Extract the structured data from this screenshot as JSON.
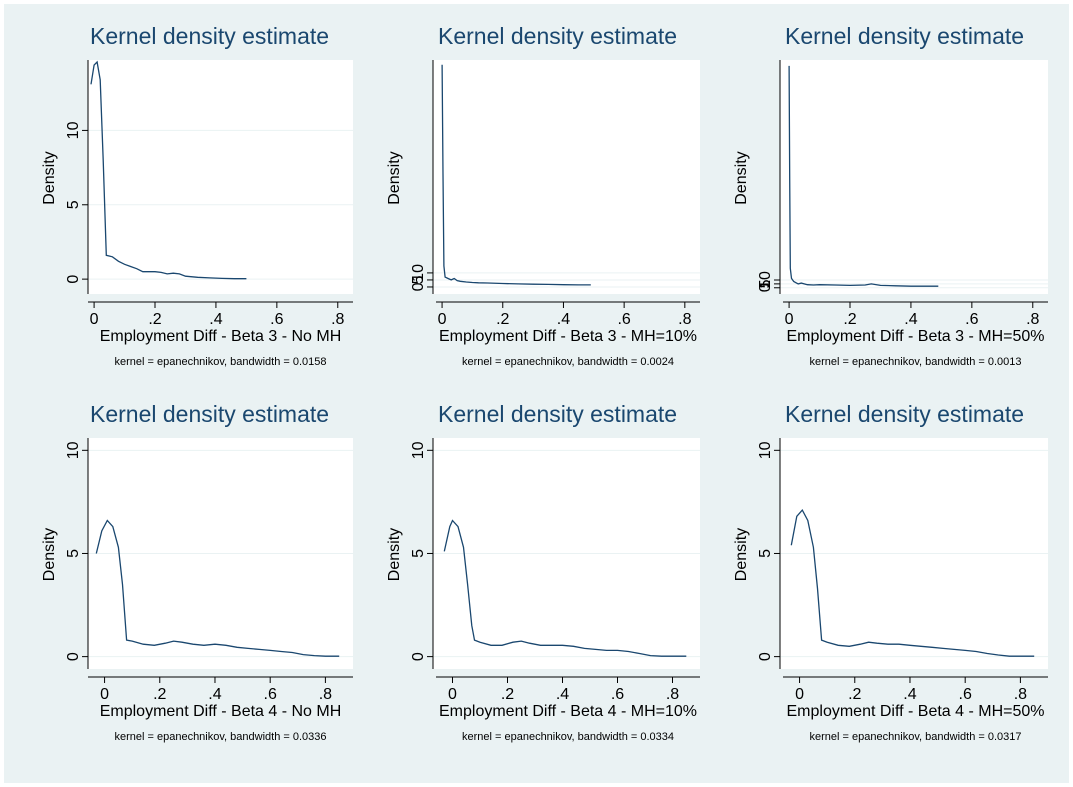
{
  "chart_data": [
    {
      "type": "line",
      "title": "Kernel density estimate",
      "xlabel": "Employment Diff - Beta 3 - No MH",
      "ylabel": "Density",
      "note": "kernel = epanechnikov, bandwidth = 0.0158",
      "xlim": [
        -0.02,
        0.85
      ],
      "ylim": [
        -1,
        14.6
      ],
      "xticks": [
        {
          "value": 0,
          "label": "0"
        },
        {
          "value": 0.2,
          "label": ".2"
        },
        {
          "value": 0.4,
          "label": ".4"
        },
        {
          "value": 0.6,
          "label": ".6"
        },
        {
          "value": 0.8,
          "label": ".8"
        }
      ],
      "yticks": [
        {
          "value": 0,
          "label": "0"
        },
        {
          "value": 5,
          "label": "5"
        },
        {
          "value": 10,
          "label": "10"
        }
      ],
      "series": [
        {
          "x": [
            -0.01,
            0.0,
            0.01,
            0.02,
            0.03,
            0.04,
            0.06,
            0.08,
            0.1,
            0.12,
            0.14,
            0.16,
            0.2,
            0.22,
            0.24,
            0.26,
            0.28,
            0.3,
            0.34,
            0.38,
            0.42,
            0.46,
            0.5
          ],
          "y": [
            13.1,
            14.4,
            14.6,
            13.4,
            8.0,
            1.6,
            1.5,
            1.2,
            1.0,
            0.85,
            0.7,
            0.5,
            0.5,
            0.45,
            0.35,
            0.4,
            0.35,
            0.2,
            0.12,
            0.08,
            0.05,
            0.03,
            0.03
          ]
        }
      ]
    },
    {
      "type": "line",
      "title": "Kernel density estimate",
      "xlabel": "Employment Diff - Beta 3 - MH=10%",
      "ylabel": "Density",
      "note": "kernel = epanechnikov, bandwidth = 0.0024",
      "xlim": [
        -0.02,
        0.85
      ],
      "ylim": [
        -5,
        160
      ],
      "xticks": [
        {
          "value": 0,
          "label": "0"
        },
        {
          "value": 0.2,
          "label": ".2"
        },
        {
          "value": 0.4,
          "label": ".4"
        },
        {
          "value": 0.6,
          "label": ".6"
        },
        {
          "value": 0.8,
          "label": ".8"
        }
      ],
      "yticks": [
        {
          "value": 0,
          "label": "0"
        },
        {
          "value": 5,
          "label": "5"
        },
        {
          "value": 10,
          "label": "10"
        }
      ],
      "series": [
        {
          "x": [
            0.0,
            0.003,
            0.006,
            0.01,
            0.02,
            0.03,
            0.04,
            0.05,
            0.06,
            0.08,
            0.1,
            0.12,
            0.15,
            0.2,
            0.25,
            0.3,
            0.35,
            0.4,
            0.45,
            0.49
          ],
          "y": [
            158,
            80,
            15,
            7,
            6,
            5,
            6,
            4.5,
            4,
            3.5,
            3.2,
            3,
            2.8,
            2.5,
            2.2,
            2,
            1.8,
            1.6,
            1.5,
            1.5
          ]
        }
      ]
    },
    {
      "type": "line",
      "title": "Kernel density estimate",
      "xlabel": "Employment Diff - Beta 3 - MH=50%",
      "ylabel": "Density",
      "note": "kernel = epanechnikov, bandwidth = 0.0013",
      "xlim": [
        -0.02,
        0.85
      ],
      "ylim": [
        -8,
        290
      ],
      "xticks": [
        {
          "value": 0,
          "label": "0"
        },
        {
          "value": 0.2,
          "label": ".2"
        },
        {
          "value": 0.4,
          "label": ".4"
        },
        {
          "value": 0.6,
          "label": ".6"
        },
        {
          "value": 0.8,
          "label": ".8"
        }
      ],
      "yticks": [
        {
          "value": 0,
          "label": "0"
        },
        {
          "value": 5,
          "label": "5"
        },
        {
          "value": 10,
          "label": "10"
        }
      ],
      "series": [
        {
          "x": [
            0.0,
            0.002,
            0.004,
            0.008,
            0.015,
            0.02,
            0.03,
            0.04,
            0.06,
            0.08,
            0.1,
            0.15,
            0.2,
            0.25,
            0.27,
            0.3,
            0.35,
            0.4,
            0.45,
            0.49
          ],
          "y": [
            285,
            140,
            25,
            12,
            8,
            7,
            5,
            6,
            4,
            3.5,
            4,
            3.5,
            3,
            3.5,
            5,
            3,
            2.5,
            2,
            2,
            2
          ]
        }
      ]
    },
    {
      "type": "line",
      "title": "Kernel density estimate",
      "xlabel": "Employment Diff - Beta 4 - No MH",
      "ylabel": "Density",
      "note": "kernel = epanechnikov, bandwidth = 0.0336",
      "xlim": [
        -0.06,
        0.9
      ],
      "ylim": [
        -0.6,
        10.5
      ],
      "xticks": [
        {
          "value": 0,
          "label": "0"
        },
        {
          "value": 0.2,
          "label": ".2"
        },
        {
          "value": 0.4,
          "label": ".4"
        },
        {
          "value": 0.6,
          "label": ".6"
        },
        {
          "value": 0.8,
          "label": ".8"
        }
      ],
      "yticks": [
        {
          "value": 0,
          "label": "0"
        },
        {
          "value": 5,
          "label": "5"
        },
        {
          "value": 10,
          "label": "10"
        }
      ],
      "series": [
        {
          "x": [
            -0.03,
            -0.01,
            0.01,
            0.03,
            0.05,
            0.065,
            0.08,
            0.1,
            0.14,
            0.18,
            0.22,
            0.25,
            0.28,
            0.32,
            0.36,
            0.4,
            0.44,
            0.48,
            0.52,
            0.56,
            0.6,
            0.64,
            0.68,
            0.72,
            0.76,
            0.8,
            0.85
          ],
          "y": [
            5.0,
            6.1,
            6.6,
            6.3,
            5.3,
            3.5,
            0.8,
            0.75,
            0.6,
            0.55,
            0.65,
            0.75,
            0.7,
            0.6,
            0.55,
            0.6,
            0.55,
            0.45,
            0.4,
            0.35,
            0.3,
            0.25,
            0.2,
            0.1,
            0.05,
            0.02,
            0.02
          ]
        }
      ]
    },
    {
      "type": "line",
      "title": "Kernel density estimate",
      "xlabel": "Employment Diff - Beta 4 - MH=10%",
      "ylabel": "Density",
      "note": "kernel = epanechnikov, bandwidth = 0.0334",
      "xlim": [
        -0.06,
        0.9
      ],
      "ylim": [
        -0.6,
        10.5
      ],
      "xticks": [
        {
          "value": 0,
          "label": "0"
        },
        {
          "value": 0.2,
          "label": ".2"
        },
        {
          "value": 0.4,
          "label": ".4"
        },
        {
          "value": 0.6,
          "label": ".6"
        },
        {
          "value": 0.8,
          "label": ".8"
        }
      ],
      "yticks": [
        {
          "value": 0,
          "label": "0"
        },
        {
          "value": 5,
          "label": "5"
        },
        {
          "value": 10,
          "label": "10"
        }
      ],
      "series": [
        {
          "x": [
            -0.03,
            -0.01,
            0.0,
            0.02,
            0.04,
            0.055,
            0.07,
            0.08,
            0.1,
            0.14,
            0.18,
            0.22,
            0.25,
            0.28,
            0.32,
            0.36,
            0.4,
            0.44,
            0.48,
            0.52,
            0.56,
            0.6,
            0.64,
            0.68,
            0.72,
            0.76,
            0.8,
            0.85
          ],
          "y": [
            5.1,
            6.3,
            6.6,
            6.3,
            5.3,
            3.5,
            1.5,
            0.8,
            0.7,
            0.55,
            0.55,
            0.7,
            0.75,
            0.65,
            0.55,
            0.55,
            0.55,
            0.5,
            0.4,
            0.35,
            0.3,
            0.3,
            0.25,
            0.15,
            0.05,
            0.02,
            0.02,
            0.02
          ]
        }
      ]
    },
    {
      "type": "line",
      "title": "Kernel density estimate",
      "xlabel": "Employment Diff - Beta 4 - MH=50%",
      "ylabel": "Density",
      "note": "kernel = epanechnikov, bandwidth = 0.0317",
      "xlim": [
        -0.06,
        0.9
      ],
      "ylim": [
        -0.6,
        10.5
      ],
      "xticks": [
        {
          "value": 0,
          "label": "0"
        },
        {
          "value": 0.2,
          "label": ".2"
        },
        {
          "value": 0.4,
          "label": ".4"
        },
        {
          "value": 0.6,
          "label": ".6"
        },
        {
          "value": 0.8,
          "label": ".8"
        }
      ],
      "yticks": [
        {
          "value": 0,
          "label": "0"
        },
        {
          "value": 5,
          "label": "5"
        },
        {
          "value": 10,
          "label": "10"
        }
      ],
      "series": [
        {
          "x": [
            -0.03,
            -0.01,
            0.01,
            0.03,
            0.05,
            0.065,
            0.08,
            0.1,
            0.14,
            0.18,
            0.22,
            0.25,
            0.28,
            0.32,
            0.36,
            0.4,
            0.44,
            0.48,
            0.52,
            0.56,
            0.6,
            0.64,
            0.68,
            0.72,
            0.76,
            0.8,
            0.85
          ],
          "y": [
            5.4,
            6.8,
            7.1,
            6.6,
            5.3,
            3.3,
            0.8,
            0.7,
            0.55,
            0.5,
            0.6,
            0.7,
            0.65,
            0.6,
            0.6,
            0.55,
            0.5,
            0.45,
            0.4,
            0.35,
            0.3,
            0.25,
            0.15,
            0.08,
            0.02,
            0.02,
            0.02
          ]
        }
      ]
    }
  ]
}
